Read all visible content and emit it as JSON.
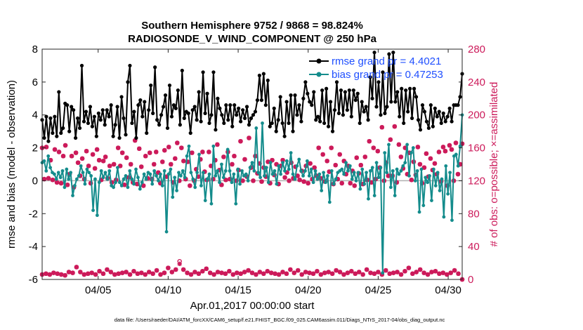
{
  "chart_data": {
    "type": "line",
    "title_line1": "Southern Hemisphere 9752 / 9868 = 98.824%",
    "title_line2": "RADIOSONDE_V_WIND_COMPONENT @ 250 hPa",
    "xlabel": "Apr.01,2017 00:00:00 start",
    "ylabel": "rmse and bias (model - observation)",
    "ylabel_right": "# of obs: o=possible; ×=assimilated",
    "x_ticks": [
      "04/05",
      "04/10",
      "04/15",
      "04/20",
      "04/25",
      "04/30"
    ],
    "x_tick_days": [
      5,
      10,
      15,
      20,
      25,
      30
    ],
    "xlim": [
      1,
      31
    ],
    "ylim": [
      -6,
      8
    ],
    "y_ticks": [
      "-6",
      "-4",
      "-2",
      "0",
      "2",
      "4",
      "6",
      "8"
    ],
    "ylim_right": [
      0,
      280
    ],
    "y_ticks_right": [
      "0",
      "40",
      "80",
      "120",
      "160",
      "200",
      "240",
      "280"
    ],
    "legend": {
      "rmse": "rmse grand pr = 4.4021",
      "bias": "bias grand pr = 0.47253",
      "location": "top-right"
    },
    "colors": {
      "rmse": "#000000",
      "bias": "#148c8c",
      "obs": "#cc1a5a",
      "zero": "#b0b0b0"
    },
    "series": [
      {
        "name": "rmse",
        "values": [
          3.7,
          2.6,
          3.9,
          2.4,
          3.8,
          2.9,
          3.9,
          2.7,
          5.4,
          2.9,
          3.2,
          4.7,
          4.6,
          3.0,
          4.5,
          4.3,
          2.6,
          3.8,
          3.2,
          7.0,
          3.6,
          4.2,
          3.5,
          4.5,
          3.3,
          3.9,
          2.7,
          4.1,
          3.7,
          4.3,
          3.4,
          4.3,
          3.9,
          4.6,
          2.7,
          3.4,
          4.5,
          2.6,
          5.1,
          3.8,
          2.8,
          6.0,
          7.0,
          3.5,
          4.2,
          2.6,
          4.6,
          4.9,
          3.9,
          4.8,
          2.9,
          4.3,
          5.8,
          4.1,
          6.9,
          3.7,
          3.4,
          4.0,
          4.5,
          5.2,
          3.2,
          5.8,
          3.9,
          4.6,
          4.4,
          5.5,
          3.4,
          6.7,
          3.8,
          4.2,
          4.1,
          2.9,
          4.3,
          4.5,
          3.7,
          5.4,
          3.6,
          6.6,
          4.1,
          5.3,
          3.5,
          4.0,
          6.6,
          3.1,
          5.0,
          4.4,
          4.0,
          3.5,
          4.6,
          3.7,
          4.6,
          3.3,
          4.6,
          4.0,
          4.4,
          3.6,
          4.3,
          3.8,
          4.5,
          3.4,
          3.8,
          4.0,
          4.2,
          4.9,
          6.4,
          4.9,
          6.5,
          4.6,
          6.1,
          3.3,
          3.5,
          4.4,
          3.0,
          3.7,
          5.1,
          3.5,
          2.7,
          4.8,
          3.5,
          5.2,
          3.0,
          5.2,
          4.0,
          4.6,
          3.6,
          5.0,
          6.0,
          5.3,
          4.8,
          4.6,
          5.4,
          3.7,
          3.9,
          3.6,
          5.5,
          3.5,
          5.6,
          3.3,
          4.8,
          3.0,
          4.3,
          6.0,
          4.1,
          5.5,
          4.0,
          5.4,
          4.3,
          5.5,
          3.9,
          5.5,
          4.9,
          5.3,
          3.5,
          4.8,
          4.2,
          4.5,
          3.7,
          6.3,
          5.0,
          7.8,
          4.5,
          6.0,
          4.0,
          6.6,
          4.1,
          4.5,
          7.7,
          4.8,
          7.8,
          4.8,
          5.4,
          3.9,
          5.6,
          3.5,
          5.5,
          4.2,
          5.6,
          3.8,
          5.6,
          5.1,
          3.7,
          3.1,
          4.6,
          4.2,
          3.6,
          3.2,
          4.6,
          3.3,
          4.4,
          3.9,
          4.2,
          3.5,
          4.1,
          3.6,
          3.9,
          4.4,
          3.6,
          4.6,
          4.6,
          4.6,
          5.1,
          6.5
        ]
      },
      {
        "name": "bias",
        "values": [
          1.1,
          1.2,
          0.6,
          1.5,
          0.8,
          0.5,
          0.4,
          0.1,
          0.5,
          0.2,
          0.6,
          -0.4,
          0.7,
          0.1,
          0.5,
          -0.9,
          -0.3,
          0.1,
          0.3,
          0.9,
          0.5,
          -0.2,
          0.7,
          0.5,
          0.3,
          -1.8,
          0.1,
          -2.1,
          -0.1,
          0.6,
          0.2,
          0.5,
          0.1,
          0.6,
          -0.3,
          -0.4,
          -0.1,
          0.8,
          -0.1,
          -0.3,
          0.1,
          0.3,
          -0.4,
          0.6,
          0.1,
          -0.2,
          0.7,
          0.2,
          -0.5,
          -0.1,
          0.4,
          0.1,
          0.5,
          0.4,
          -0.2,
          0.6,
          0.3,
          0.0,
          0.4,
          -0.3,
          0.6,
          -3.1,
          0.4,
          0.7,
          -1.0,
          0.2,
          -0.6,
          0.5,
          0.3,
          0.6,
          0.2,
          1.5,
          2.1,
          0.5,
          0.1,
          -0.4,
          0.5,
          1.6,
          -0.3,
          0.5,
          -1.2,
          0.1,
          0.4,
          -1.4,
          2.1,
          0.3,
          0.6,
          -0.1,
          1.0,
          0.2,
          0.6,
          1.9,
          0.6,
          -0.1,
          0.4,
          -1.4,
          0.7,
          -0.2,
          0.6,
          0.3,
          0.4,
          0.0,
          0.8,
          1.1,
          0.6,
          3.2,
          0.5,
          0.2,
          3.5,
          0.3,
          0.8,
          -0.1,
          1.1,
          0.4,
          0.6,
          -0.2,
          0.9,
          0.4,
          1.1,
          0.6,
          1.2,
          0.7,
          1.7,
          0.4,
          0.1,
          0.9,
          1.3,
          0.6,
          0.3,
          0.6,
          1.2,
          0.3,
          0.7,
          -0.1,
          0.6,
          0.1,
          0.4,
          -0.6,
          0.5,
          -0.1,
          0.3,
          -1.3,
          0.6,
          -0.2,
          0.1,
          0.5,
          0.6,
          0.7,
          0.4,
          1.1,
          0.6,
          0.9,
          0.1,
          0.5,
          0.0,
          0.5,
          -0.5,
          0.7,
          -0.2,
          0.5,
          -1.1,
          0.6,
          0.8,
          -0.9,
          1.1,
          0.2,
          0.8,
          -5.6,
          1.7,
          0.5,
          2.2,
          -0.4,
          0.6,
          -0.9,
          0.7,
          0.4,
          0.6,
          0.9,
          1.1,
          2.2,
          0.3,
          1.7,
          2.0,
          0.0,
          0.6,
          -1.9,
          0.7,
          -1.5,
          0.2,
          -0.1,
          0.3,
          -1.2,
          0.7,
          -0.3,
          0.5,
          -0.6,
          0.1,
          -2.2,
          0.9,
          -0.8,
          0.5,
          -2.4,
          1.5,
          1.6,
          0.9,
          2.1,
          4.0
        ]
      },
      {
        "name": "obs_assimilated",
        "values": [
          160,
          122,
          161,
          123,
          145,
          121,
          158,
          118,
          155,
          117,
          150,
          163,
          115,
          128,
          150,
          112,
          154,
          142,
          126,
          147,
          122,
          156,
          138,
          117,
          152,
          135,
          158,
          145,
          121,
          144,
          149,
          123,
          138,
          118,
          140,
          121,
          160,
          138,
          154,
          115,
          148,
          124,
          140,
          118,
          169,
          116,
          159,
          137,
          114,
          150,
          123,
          154,
          122,
          140,
          155,
          130,
          117,
          143,
          157,
          125,
          161,
          140,
          118,
          147,
          166,
          120,
          160,
          144,
          122,
          143,
          114,
          154,
          120,
          134,
          125,
          146,
          155,
          131,
          121,
          155,
          138,
          122,
          145,
          164,
          133,
          115,
          149,
          121,
          155,
          122,
          140,
          150,
          120,
          133,
          168,
          120,
          146,
          125,
          172,
          136,
          120,
          150,
          129,
          141,
          119,
          136,
          125,
          143,
          117,
          145,
          127,
          140,
          116,
          138,
          145,
          124,
          130,
          120,
          142,
          123,
          137,
          126,
          121,
          132,
          119,
          138,
          117,
          141,
          122,
          136,
          126,
          160,
          123,
          152,
          119,
          144,
          131,
          160,
          116,
          139,
          122,
          152,
          117,
          144,
          128,
          138,
          117,
          132,
          114,
          148,
          129,
          139,
          116,
          149,
          121,
          168,
          118,
          160,
          122,
          156,
          136,
          185,
          120,
          142,
          126,
          170,
          126,
          186,
          118,
          164,
          149,
          135,
          160,
          128,
          154,
          121,
          143,
          127,
          161,
          140,
          117,
          136,
          153,
          125,
          147,
          133,
          141,
          128,
          155,
          119,
          161,
          156,
          114,
          163,
          158,
          120,
          166,
          128,
          140,
          165
        ]
      },
      {
        "name": "obs_possible",
        "values": [
          160,
          122,
          161,
          123,
          145,
          121,
          158,
          118,
          155,
          117,
          150,
          163,
          115,
          128,
          150,
          112,
          154,
          142,
          126,
          147,
          122,
          156,
          138,
          117,
          152,
          135,
          158,
          145,
          121,
          144,
          149,
          123,
          138,
          118,
          140,
          121,
          160,
          138,
          154,
          115,
          148,
          124,
          140,
          118,
          169,
          116,
          159,
          137,
          114,
          150,
          123,
          154,
          122,
          140,
          155,
          130,
          117,
          143,
          157,
          125,
          161,
          140,
          118,
          147,
          166,
          120,
          160,
          144,
          122,
          143,
          114,
          154,
          120,
          134,
          125,
          146,
          155,
          131,
          121,
          155,
          138,
          122,
          145,
          164,
          133,
          115,
          149,
          121,
          155,
          122,
          140,
          150,
          120,
          133,
          168,
          120,
          146,
          125,
          172,
          136,
          120,
          150,
          129,
          141,
          119,
          136,
          125,
          143,
          117,
          145,
          127,
          140,
          116,
          138,
          145,
          124,
          130,
          120,
          142,
          123,
          137,
          126,
          121,
          132,
          119,
          138,
          117,
          141,
          122,
          136,
          126,
          160,
          123,
          152,
          119,
          144,
          131,
          160,
          116,
          139,
          122,
          152,
          117,
          144,
          128,
          138,
          117,
          132,
          114,
          148,
          129,
          139,
          116,
          149,
          121,
          168,
          118,
          160,
          122,
          156,
          136,
          185,
          120,
          142,
          126,
          170,
          126,
          186,
          118,
          164,
          149,
          135,
          160,
          128,
          154,
          121,
          143,
          127,
          161,
          140,
          117,
          136,
          153,
          125,
          147,
          133,
          141,
          128,
          155,
          119,
          161,
          156,
          114,
          163,
          158,
          120,
          166,
          128,
          140,
          165
        ]
      },
      {
        "name": "obs_low_assimilated",
        "values": [
          6,
          7,
          6,
          8,
          7,
          6,
          5,
          9,
          8,
          15,
          9,
          6,
          7,
          8,
          6,
          10,
          7,
          12,
          9,
          6,
          7,
          8,
          9,
          6,
          10,
          7,
          8,
          6,
          9,
          7,
          11,
          6,
          8,
          14,
          9,
          12,
          19,
          12,
          8,
          6,
          9,
          7,
          10,
          13,
          8,
          6,
          9,
          8,
          7,
          10,
          6,
          8,
          7,
          9,
          11,
          8,
          6,
          9,
          7,
          10,
          8,
          7,
          6,
          9,
          7,
          12,
          8,
          11,
          6,
          9,
          8,
          7,
          10,
          6,
          8,
          9,
          7,
          11,
          9,
          6,
          8,
          10,
          7,
          9,
          6,
          12,
          8,
          7,
          9,
          6,
          11,
          7,
          8,
          9,
          6,
          10,
          14,
          7,
          9,
          12,
          8,
          6,
          9,
          10,
          7,
          8,
          6,
          8,
          11,
          7,
          0
        ]
      },
      {
        "name": "obs_low_possible",
        "values": [
          6,
          7,
          6,
          8,
          7,
          6,
          5,
          9,
          8,
          15,
          9,
          6,
          7,
          8,
          6,
          10,
          7,
          12,
          9,
          6,
          7,
          8,
          9,
          6,
          10,
          7,
          8,
          6,
          9,
          7,
          11,
          6,
          8,
          14,
          9,
          12,
          22,
          12,
          8,
          6,
          9,
          7,
          10,
          13,
          8,
          6,
          9,
          8,
          7,
          10,
          6,
          8,
          7,
          9,
          11,
          8,
          6,
          9,
          7,
          10,
          8,
          7,
          6,
          9,
          7,
          12,
          8,
          11,
          6,
          9,
          8,
          7,
          10,
          6,
          8,
          9,
          7,
          11,
          9,
          6,
          8,
          10,
          7,
          9,
          6,
          12,
          8,
          7,
          9,
          6,
          11,
          7,
          8,
          9,
          6,
          10,
          14,
          7,
          9,
          12,
          8,
          6,
          9,
          10,
          7,
          8,
          6,
          8,
          11,
          7,
          0
        ]
      }
    ]
  },
  "footer": "data file: /Users/raeder/DAI/ATM_forcXX/CAM6_setup/f.e21.FHIST_BGC.f09_025.CAM6assim.011/Diags_NTrS_2017-04/obs_diag_output.nc"
}
